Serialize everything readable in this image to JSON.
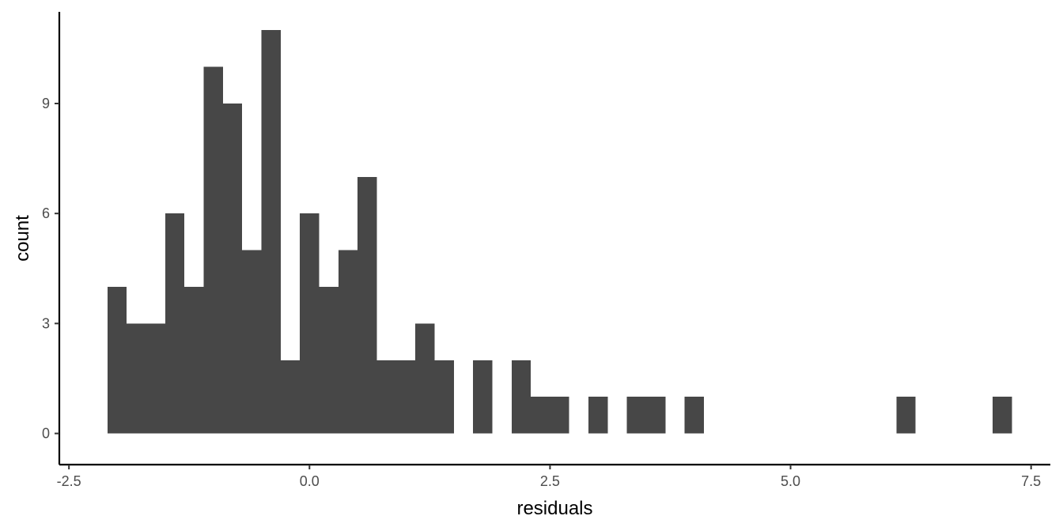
{
  "chart_data": {
    "type": "bar",
    "subtype": "histogram",
    "xlabel": "residuals",
    "ylabel": "count",
    "xlim": [
      -2.6,
      7.7
    ],
    "ylim": [
      -0.85,
      11.5
    ],
    "x_ticks": [
      -2.5,
      0.0,
      2.5,
      5.0,
      7.5
    ],
    "x_tick_labels": [
      "-2.5",
      "0.0",
      "2.5",
      "5.0",
      "7.5"
    ],
    "y_ticks": [
      0,
      3,
      6,
      9
    ],
    "y_tick_labels": [
      "0",
      "3",
      "6",
      "9"
    ],
    "bin_width": 0.2,
    "bins": [
      {
        "x0": -2.1,
        "x1": -1.9,
        "count": 4
      },
      {
        "x0": -1.9,
        "x1": -1.7,
        "count": 3
      },
      {
        "x0": -1.7,
        "x1": -1.5,
        "count": 3
      },
      {
        "x0": -1.5,
        "x1": -1.3,
        "count": 6
      },
      {
        "x0": -1.3,
        "x1": -1.1,
        "count": 4
      },
      {
        "x0": -1.1,
        "x1": -0.9,
        "count": 10
      },
      {
        "x0": -0.9,
        "x1": -0.7,
        "count": 9
      },
      {
        "x0": -0.7,
        "x1": -0.5,
        "count": 5
      },
      {
        "x0": -0.5,
        "x1": -0.3,
        "count": 11
      },
      {
        "x0": -0.3,
        "x1": -0.1,
        "count": 2
      },
      {
        "x0": -0.1,
        "x1": 0.1,
        "count": 6
      },
      {
        "x0": 0.1,
        "x1": 0.3,
        "count": 4
      },
      {
        "x0": 0.3,
        "x1": 0.5,
        "count": 5
      },
      {
        "x0": 0.5,
        "x1": 0.7,
        "count": 7
      },
      {
        "x0": 0.7,
        "x1": 0.9,
        "count": 2
      },
      {
        "x0": 0.9,
        "x1": 1.1,
        "count": 2
      },
      {
        "x0": 1.1,
        "x1": 1.3,
        "count": 3
      },
      {
        "x0": 1.3,
        "x1": 1.5,
        "count": 2
      },
      {
        "x0": 1.7,
        "x1": 1.9,
        "count": 2
      },
      {
        "x0": 2.1,
        "x1": 2.3,
        "count": 2
      },
      {
        "x0": 2.3,
        "x1": 2.5,
        "count": 1
      },
      {
        "x0": 2.5,
        "x1": 2.7,
        "count": 1
      },
      {
        "x0": 2.9,
        "x1": 3.1,
        "count": 1
      },
      {
        "x0": 3.3,
        "x1": 3.5,
        "count": 1
      },
      {
        "x0": 3.5,
        "x1": 3.7,
        "count": 1
      },
      {
        "x0": 3.9,
        "x1": 4.1,
        "count": 1
      },
      {
        "x0": 6.1,
        "x1": 6.3,
        "count": 1
      },
      {
        "x0": 7.1,
        "x1": 7.3,
        "count": 1
      }
    ],
    "bar_color": "#474747",
    "grid": false,
    "legend": "none"
  }
}
